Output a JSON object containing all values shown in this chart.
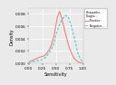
{
  "title": "",
  "xlabel": "Sensitivity",
  "ylabel": "Density",
  "legend_title": "Histopatho...\nDiagno...",
  "legend_labels": [
    "Positive ...",
    "Negative ..."
  ],
  "line_colors": [
    "#F08080",
    "#5BC8C8"
  ],
  "background_color": "#EAEAEA",
  "panel_color": "#EAEAEA",
  "x_ticks": [
    0.0,
    0.25,
    0.5,
    0.75,
    1.0
  ],
  "y_ticks": [
    0.0,
    0.002,
    0.004,
    0.006,
    0.008
  ],
  "xlim": [
    0.0,
    1.0
  ],
  "ylim": [
    0.0,
    0.0088
  ],
  "red_data_x": [
    0.0,
    0.05,
    0.1,
    0.15,
    0.2,
    0.25,
    0.28,
    0.3,
    0.33,
    0.38,
    0.42,
    0.47,
    0.5,
    0.53,
    0.57,
    0.6,
    0.65,
    0.7,
    0.75,
    0.8,
    0.85,
    0.9,
    0.95,
    1.0
  ],
  "red_data_y": [
    0.0002,
    0.0004,
    0.0006,
    0.0008,
    0.001,
    0.0011,
    0.0012,
    0.0013,
    0.0016,
    0.0022,
    0.003,
    0.0045,
    0.006,
    0.0075,
    0.0083,
    0.0075,
    0.0058,
    0.004,
    0.0025,
    0.0014,
    0.0007,
    0.0003,
    0.0001,
    5e-05
  ],
  "cyan_data_x": [
    0.0,
    0.05,
    0.1,
    0.15,
    0.2,
    0.25,
    0.28,
    0.3,
    0.33,
    0.38,
    0.42,
    0.47,
    0.5,
    0.55,
    0.6,
    0.65,
    0.68,
    0.72,
    0.75,
    0.8,
    0.85,
    0.9,
    0.95,
    1.0
  ],
  "cyan_data_y": [
    0.0001,
    0.0002,
    0.0003,
    0.0004,
    0.0005,
    0.0006,
    0.0007,
    0.0009,
    0.0012,
    0.0017,
    0.0023,
    0.0033,
    0.0045,
    0.0058,
    0.0068,
    0.0074,
    0.0077,
    0.0075,
    0.007,
    0.0055,
    0.0038,
    0.0018,
    0.0007,
    0.0002
  ]
}
